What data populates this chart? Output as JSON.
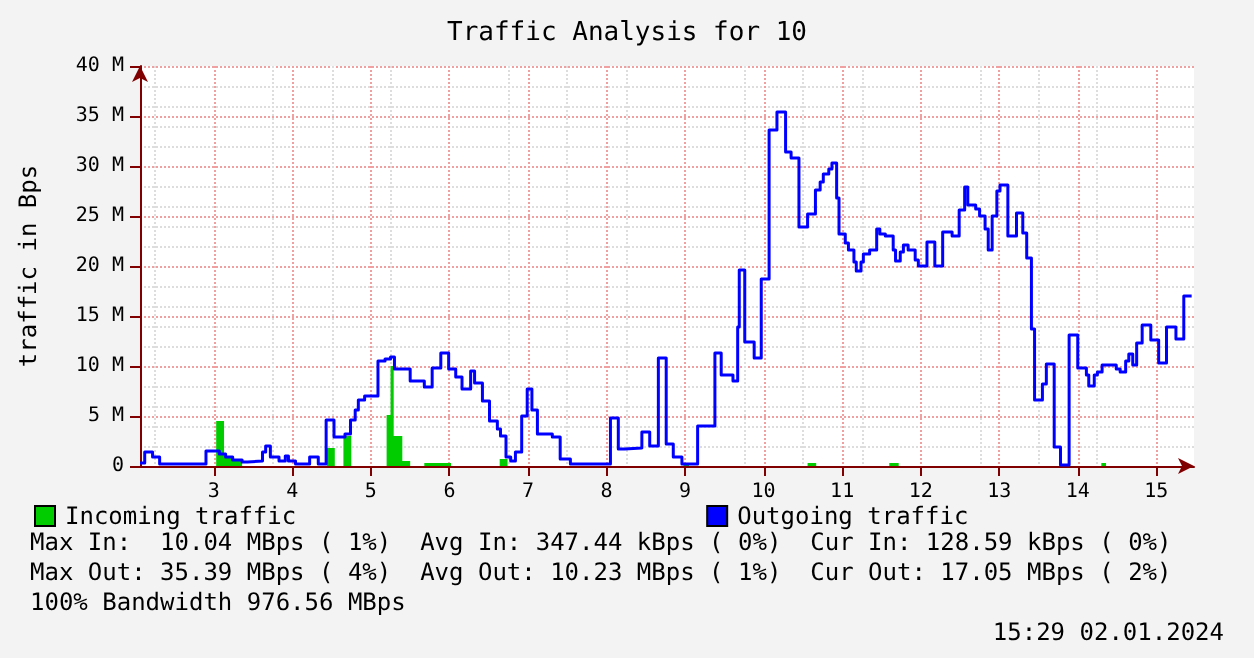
{
  "chart_data": {
    "type": "step",
    "title": "Traffic Analysis for 10",
    "ylabel": "traffic in Bps",
    "xlim": [
      2.06,
      15.48
    ],
    "xticks": [
      3,
      4,
      5,
      6,
      7,
      8,
      9,
      10,
      11,
      12,
      13,
      14,
      15
    ],
    "ylim": [
      0,
      40
    ],
    "yticks": [
      0,
      {
        "value": 5,
        "label": "5 M"
      },
      {
        "value": 10,
        "label": "10 M"
      },
      {
        "value": 15,
        "label": "15 M"
      },
      {
        "value": 20,
        "label": "20 M"
      },
      {
        "value": 25,
        "label": "25 M"
      },
      {
        "value": 30,
        "label": "30 M"
      },
      {
        "value": 35,
        "label": "35 M"
      },
      {
        "value": 40,
        "label": "40 M"
      }
    ],
    "grid": true,
    "legend": "bottom left",
    "series": [
      {
        "name": "Incoming traffic",
        "type": "area",
        "color": "#00cc00",
        "x": [
          2.06,
          3.03,
          3.13,
          3.24,
          3.36,
          4.44,
          4.54,
          4.65,
          4.75,
          5.2,
          5.25,
          5.29,
          5.4,
          5.5,
          5.68,
          6.02,
          6.64,
          6.74,
          8.98,
          9.05,
          10.56,
          10.67,
          11.6,
          11.72,
          14.3,
          14.36,
          15.45
        ],
        "values": [
          0,
          4.5,
          1.0,
          0.6,
          0,
          1.8,
          0,
          3.0,
          0,
          5.1,
          10.0,
          3.0,
          0.5,
          0,
          0.3,
          0,
          0.7,
          0,
          0.3,
          0,
          0.3,
          0,
          0.3,
          0,
          0.3,
          0,
          0
        ]
      },
      {
        "name": "Outgoing traffic",
        "color": "#0000ff",
        "x": [
          2.06,
          2.12,
          2.22,
          2.31,
          2.9,
          3.07,
          3.15,
          3.24,
          3.36,
          3.43,
          3.62,
          3.66,
          3.72,
          3.83,
          3.91,
          3.95,
          4.04,
          4.22,
          4.33,
          4.43,
          4.53,
          4.67,
          4.74,
          4.8,
          4.84,
          4.92,
          5.09,
          5.18,
          5.25,
          5.3,
          5.5,
          5.68,
          5.78,
          5.89,
          5.99,
          6.08,
          6.16,
          6.27,
          6.32,
          6.42,
          6.51,
          6.61,
          6.65,
          6.72,
          6.78,
          6.84,
          6.92,
          6.99,
          7.05,
          7.12,
          7.31,
          7.41,
          7.54,
          8.05,
          8.15,
          8.23,
          8.45,
          8.55,
          8.66,
          8.76,
          8.85,
          8.96,
          9.16,
          9.38,
          9.46,
          9.61,
          9.67,
          9.69,
          9.76,
          9.88,
          9.97,
          10.07,
          10.17,
          10.28,
          10.35,
          10.45,
          10.56,
          10.66,
          10.72,
          10.76,
          10.83,
          10.87,
          10.93,
          10.96,
          11.04,
          11.08,
          11.15,
          11.18,
          11.24,
          11.27,
          11.35,
          11.44,
          11.48,
          11.55,
          11.65,
          11.68,
          11.74,
          11.78,
          11.84,
          11.93,
          11.97,
          12.08,
          12.18,
          12.28,
          12.4,
          12.49,
          12.56,
          12.6,
          12.7,
          12.75,
          12.82,
          12.86,
          12.91,
          12.97,
          13.01,
          13.11,
          13.22,
          13.3,
          13.35,
          13.41,
          13.45,
          13.55,
          13.6,
          13.7,
          13.78,
          13.89,
          14.0,
          14.11,
          14.14,
          14.21,
          14.25,
          14.31,
          14.49,
          14.54,
          14.61,
          14.65,
          14.7,
          14.75,
          14.82,
          14.93,
          15.03,
          15.13,
          15.25,
          15.35,
          15.45
        ],
        "values": [
          0.3,
          1.4,
          0.9,
          0.2,
          1.5,
          1.2,
          0.9,
          0.6,
          0.4,
          0.5,
          1.4,
          2.0,
          0.9,
          0.5,
          1.0,
          0.5,
          0.2,
          0.9,
          0.2,
          4.6,
          2.9,
          3.2,
          4.6,
          5.6,
          6.6,
          7.0,
          10.5,
          10.7,
          10.9,
          9.7,
          8.5,
          7.9,
          9.8,
          11.3,
          9.7,
          8.9,
          7.7,
          9.5,
          8.3,
          6.5,
          4.5,
          3.7,
          3.0,
          0.9,
          0.5,
          1.4,
          5.0,
          7.7,
          5.6,
          3.2,
          2.9,
          0.7,
          0.2,
          4.8,
          1.7,
          1.8,
          3.4,
          2.0,
          10.8,
          2.2,
          0.9,
          0.2,
          4.0,
          11.3,
          9.1,
          8.5,
          13.9,
          19.6,
          12.4,
          10.8,
          18.7,
          33.6,
          35.4,
          31.4,
          30.8,
          23.9,
          25.2,
          27.6,
          28.4,
          29.2,
          29.7,
          30.3,
          26.8,
          23.2,
          22.3,
          21.6,
          20.4,
          19.5,
          20.4,
          21.2,
          21.6,
          23.7,
          23.2,
          23.0,
          21.6,
          20.5,
          21.4,
          22.1,
          21.6,
          20.6,
          20.0,
          22.4,
          20.0,
          23.4,
          23.0,
          25.6,
          27.9,
          26.1,
          25.7,
          25.0,
          23.7,
          21.6,
          25.0,
          27.5,
          28.1,
          23.0,
          25.3,
          23.3,
          20.8,
          13.7,
          6.6,
          8.2,
          10.2,
          1.9,
          0.1,
          13.1,
          9.8,
          9.1,
          8.0,
          9.1,
          9.4,
          10.1,
          9.7,
          9.4,
          10.5,
          11.2,
          10.1,
          12.3,
          14.1,
          12.6,
          10.3,
          13.9,
          12.7,
          17.0,
          17.0
        ]
      }
    ],
    "annotations": [
      "Max In:  10.04 MBps ( 1%)  Avg In: 347.44 kBps ( 0%)  Cur In: 128.59 kBps ( 0%)",
      "Max Out: 35.39 MBps ( 4%)  Avg Out: 10.23 MBps ( 1%)  Cur Out: 17.05 MBps ( 2%)",
      "100% Bandwidth 976.56 MBps",
      "15:29 02.01.2024"
    ]
  }
}
